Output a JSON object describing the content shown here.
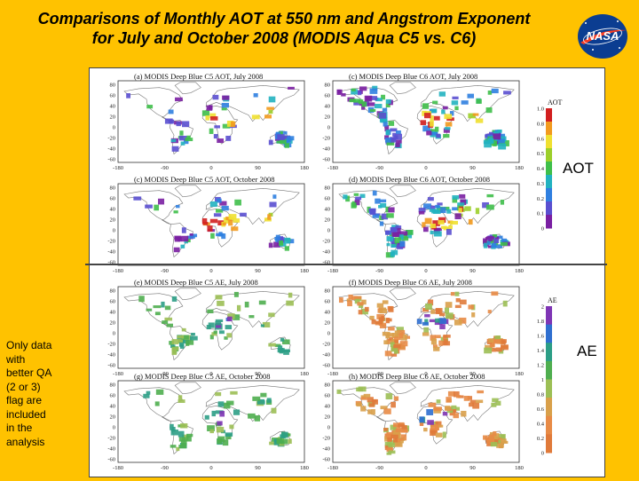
{
  "title": {
    "line1": "Comparisons of Monthly AOT at 550 nm and Angstrom Exponent",
    "line2": "for July and October 2008 (MODIS Aqua C5 vs. C6)"
  },
  "logo": {
    "text": "NASA"
  },
  "panels": [
    {
      "id": "a",
      "label": "(a) MODIS Deep Blue C5 AOT, July 2008"
    },
    {
      "id": "c",
      "label": "(c) MODIS Deep Blue C6 AOT, July 2008"
    },
    {
      "id": "e1",
      "label": "(c) MODIS Deep Blue C5 AOT, October 2008"
    },
    {
      "id": "d",
      "label": "(d) MODIS Deep Blue C6 AOT, October 2008"
    },
    {
      "id": "e",
      "label": "(e) MODIS Deep Blue C5 AE, July 2008"
    },
    {
      "id": "f",
      "label": "(f) MODIS Deep Blue C6 AE, July 2008"
    },
    {
      "id": "g",
      "label": "(g) MODIS Deep Blue C5 AE, October 2008"
    },
    {
      "id": "h",
      "label": "(h) MODIS Deep Blue C6 AE, October 2008"
    }
  ],
  "lat_ticks": [
    "80",
    "60",
    "40",
    "20",
    "0",
    "-20",
    "-40",
    "-60"
  ],
  "lon_ticks": [
    "-180",
    "-90",
    "0",
    "90",
    "180"
  ],
  "aot_colorbar": {
    "title": "AOT",
    "ticks": [
      "1.0",
      "0.8",
      "0.6",
      "0.5",
      "0.4",
      "0.3",
      "0.2",
      "0.1",
      "0"
    ]
  },
  "ae_colorbar": {
    "title": "AE",
    "ticks": [
      "2",
      "1.8",
      "1.6",
      "1.4",
      "1.2",
      "1",
      "0.8",
      "0.6",
      "0.4",
      "0.2",
      "0"
    ]
  },
  "side_labels": {
    "aot": "AOT",
    "ae": "AE"
  },
  "note_lines": [
    "Only data",
    "with",
    "better QA",
    "(2 or 3)",
    "flag are",
    "included",
    "in the",
    "analysis"
  ],
  "colors": {
    "background": "#FFC200",
    "aot_low": "#7a1fa2",
    "aot_high": "#d21f1f",
    "ae_fine": "#e07a3a",
    "ae_coarse": "#3b8f3b"
  }
}
